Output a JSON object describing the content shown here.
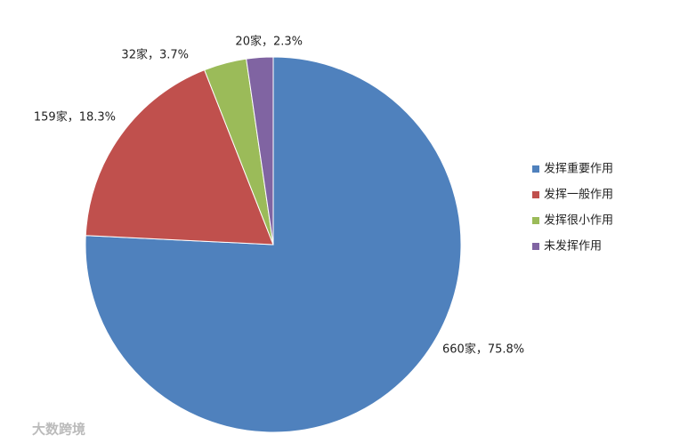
{
  "chart_data": {
    "type": "pie",
    "categories": [
      "发挥重要作用",
      "发挥一般作用",
      "发挥很小作用",
      "未发挥作用"
    ],
    "values": [
      660,
      159,
      32,
      20
    ],
    "value_labels": [
      "660家，75.8%",
      "159家，18.3%",
      "32家，3.7%",
      "20家，2.3%"
    ],
    "colors": [
      "#4f81bd",
      "#c0504d",
      "#9bbb59",
      "#8064a2"
    ],
    "legend": "right"
  },
  "watermark": "大数跨境"
}
